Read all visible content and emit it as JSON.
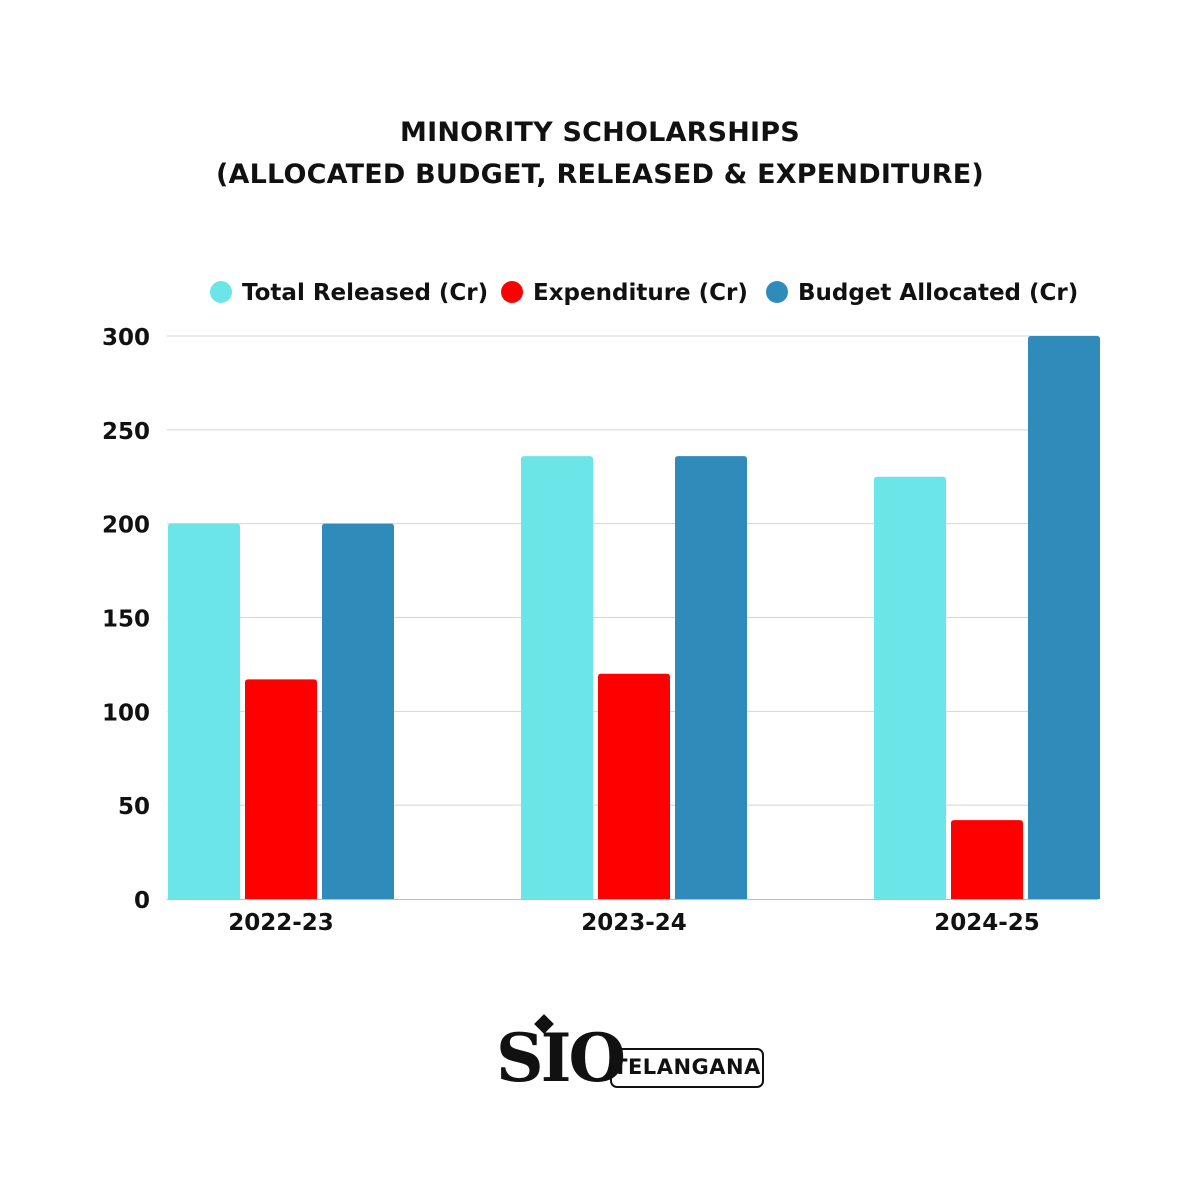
{
  "header": {
    "title_line1": "MINORITY SCHOLARSHIPS",
    "title_line2": "(ALLOCATED BUDGET, RELEASED & EXPENDITURE)"
  },
  "chart_data": {
    "type": "bar",
    "title": "MINORITY SCHOLARSHIPS (ALLOCATED BUDGET, RELEASED & EXPENDITURE)",
    "xlabel": "",
    "ylabel": "",
    "categories": [
      "2022-23",
      "2023-24",
      "2024-25"
    ],
    "series": [
      {
        "name": "Total Released (Cr)",
        "color": "#6ce5e8",
        "values": [
          200,
          236,
          225
        ]
      },
      {
        "name": "Expenditure (Cr)",
        "color": "#ff0000",
        "values": [
          117,
          120,
          42
        ]
      },
      {
        "name": "Budget Allocated (Cr)",
        "color": "#2e8bba",
        "values": [
          200,
          236,
          300
        ]
      }
    ],
    "ylim": [
      0,
      300
    ],
    "yticks": [
      "0",
      "50",
      "100",
      "150",
      "200",
      "250",
      "300"
    ],
    "grid": true,
    "legend_position": "top"
  },
  "logo": {
    "brand": "SIO",
    "region": "TELANGANA"
  }
}
